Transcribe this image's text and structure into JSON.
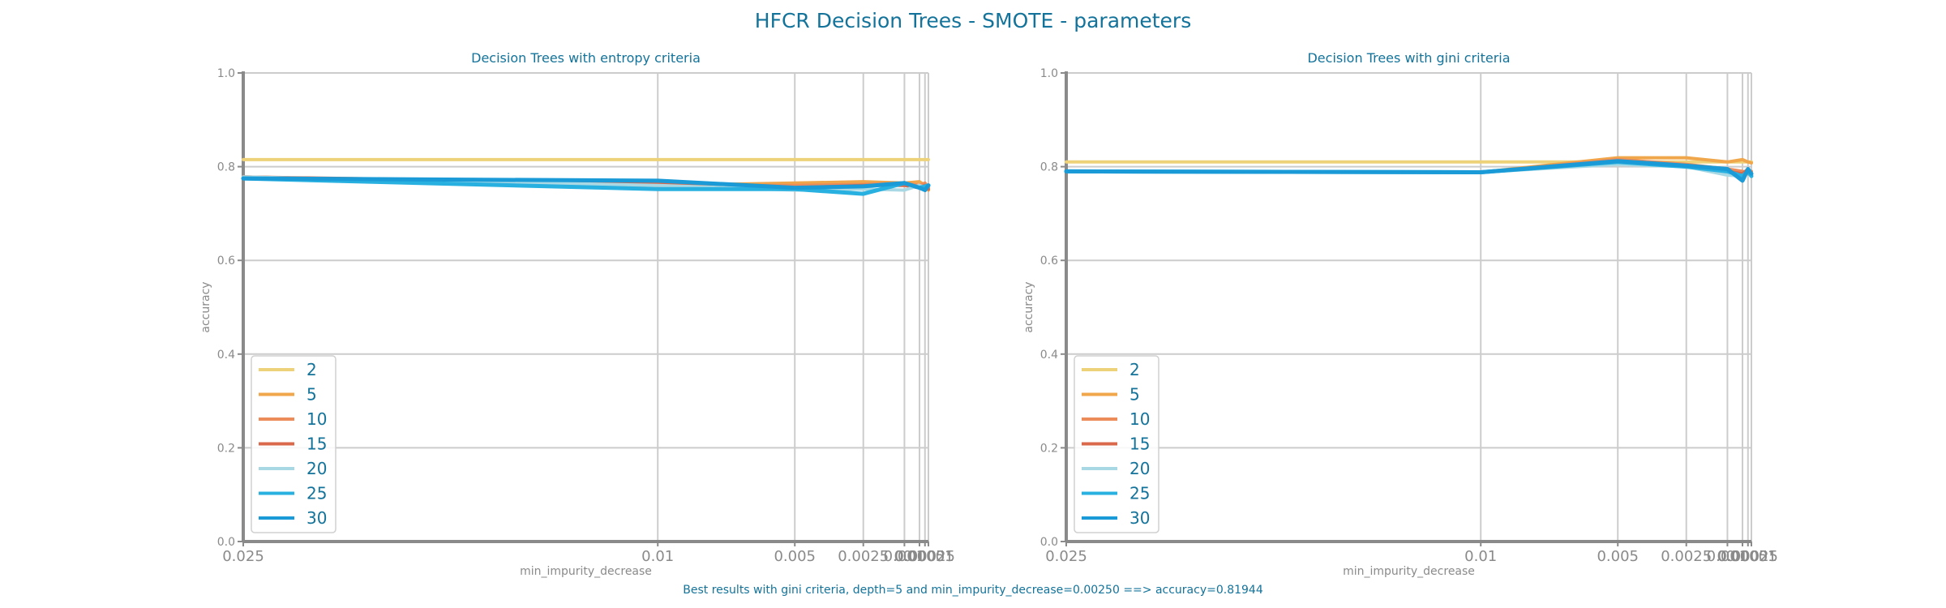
{
  "figure": {
    "title": "HFCR Decision Trees - SMOTE - parameters",
    "footer": "Best results with gini criteria, depth=5 and min_impurity_decrease=0.00250 ==> accuracy=0.81944"
  },
  "colors": {
    "2": "#eed27a",
    "5": "#f0a64a",
    "10": "#ec8c5a",
    "15": "#d9694a",
    "20": "#a8d8e4",
    "25": "#28b0e0",
    "30": "#1a9ad6",
    "text": "#13739a",
    "axis": "#8a8a8a",
    "grid": "#cccccc"
  },
  "chart_data": [
    {
      "type": "line",
      "title": "Decision Trees with entropy criteria",
      "xlabel": "min_impurity_decrease",
      "ylabel": "accuracy",
      "ylim": [
        0,
        1
      ],
      "x_scale": "categorical",
      "x": [
        "0.025",
        "0.01",
        "0.005",
        "0.0025",
        "0.001",
        "0.0005",
        "0.00025",
        "0.0001"
      ],
      "yticks": [
        "0.0",
        "0.2",
        "0.4",
        "0.6",
        "0.8",
        "1.0"
      ],
      "grid": true,
      "legend_position": "lower-left",
      "series": [
        {
          "name": "2",
          "values": [
            0.815,
            0.815,
            0.815,
            0.815,
            0.815,
            0.815,
            0.815,
            0.815
          ]
        },
        {
          "name": "5",
          "values": [
            0.778,
            0.76,
            0.765,
            0.768,
            0.765,
            0.768,
            0.76,
            0.75
          ]
        },
        {
          "name": "10",
          "values": [
            0.778,
            0.76,
            0.76,
            0.762,
            0.765,
            0.76,
            0.765,
            0.755
          ]
        },
        {
          "name": "15",
          "values": [
            0.778,
            0.765,
            0.755,
            0.76,
            0.76,
            0.755,
            0.76,
            0.752
          ]
        },
        {
          "name": "20",
          "values": [
            0.778,
            0.76,
            0.75,
            0.752,
            0.75,
            0.76,
            0.755,
            0.76
          ]
        },
        {
          "name": "25",
          "values": [
            0.775,
            0.752,
            0.752,
            0.742,
            0.765,
            0.755,
            0.758,
            0.76
          ]
        },
        {
          "name": "30",
          "values": [
            0.775,
            0.77,
            0.755,
            0.758,
            0.765,
            0.755,
            0.75,
            0.76
          ]
        }
      ]
    },
    {
      "type": "line",
      "title": "Decision Trees with gini criteria",
      "xlabel": "min_impurity_decrease",
      "ylabel": "accuracy",
      "ylim": [
        0,
        1
      ],
      "x_scale": "categorical",
      "x": [
        "0.025",
        "0.01",
        "0.005",
        "0.0025",
        "0.001",
        "0.0005",
        "0.00025",
        "0.0001"
      ],
      "yticks": [
        "0.0",
        "0.2",
        "0.4",
        "0.6",
        "0.8",
        "1.0"
      ],
      "grid": true,
      "legend_position": "lower-left",
      "series": [
        {
          "name": "2",
          "values": [
            0.81,
            0.81,
            0.81,
            0.81,
            0.81,
            0.81,
            0.81,
            0.81
          ]
        },
        {
          "name": "5",
          "values": [
            0.79,
            0.788,
            0.819,
            0.819,
            0.81,
            0.815,
            0.81,
            0.808
          ]
        },
        {
          "name": "10",
          "values": [
            0.79,
            0.788,
            0.815,
            0.805,
            0.795,
            0.79,
            0.785,
            0.79
          ]
        },
        {
          "name": "15",
          "values": [
            0.79,
            0.788,
            0.812,
            0.8,
            0.79,
            0.785,
            0.795,
            0.785
          ]
        },
        {
          "name": "20",
          "values": [
            0.79,
            0.788,
            0.805,
            0.8,
            0.782,
            0.78,
            0.79,
            0.785
          ]
        },
        {
          "name": "25",
          "values": [
            0.79,
            0.788,
            0.81,
            0.8,
            0.79,
            0.78,
            0.79,
            0.78
          ]
        },
        {
          "name": "30",
          "values": [
            0.79,
            0.788,
            0.812,
            0.802,
            0.795,
            0.77,
            0.795,
            0.785
          ]
        }
      ]
    }
  ]
}
